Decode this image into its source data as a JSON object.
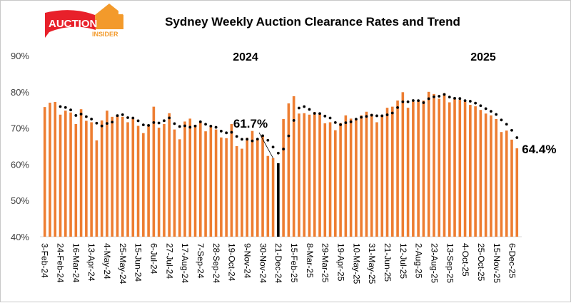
{
  "chart_data": {
    "type": "bar",
    "title": "Sydney Weekly Auction Clearance Rates and Trend",
    "logo_text": [
      "AUCTION",
      "INSIDER"
    ],
    "ylim": [
      40,
      90
    ],
    "ytick_labels": [
      "40%",
      "50%",
      "60%",
      "70%",
      "80%",
      "90%"
    ],
    "xtick_labels": [
      "3-Feb-24",
      "24-Feb-24",
      "16-Mar-24",
      "13-Apr-24",
      "4-May-24",
      "25-May-24",
      "15-Jun-24",
      "6-Jul-24",
      "27-Jul-24",
      "17-Aug-24",
      "7-Sep-24",
      "28-Sep-24",
      "19-Oct-24",
      "9-Nov-24",
      "30-Nov-24",
      "21-Dec-24",
      "15-Feb-25",
      "8-Mar-25",
      "29-Mar-25",
      "19-Apr-25",
      "10-May-25",
      "31-May-25",
      "21-Jun-25",
      "12-Jul-25",
      "2-Aug-25",
      "23-Aug-25",
      "13-Sep-25",
      "4-Oct-25",
      "25-Oct-25",
      "15-Nov-25",
      "6-Dec-25"
    ],
    "year_labels": [
      "2024",
      "2025"
    ],
    "values": [
      75.8,
      77.0,
      77.2,
      73.7,
      74.8,
      74.3,
      71.1,
      75.2,
      72.0,
      71.6,
      66.6,
      72.1,
      74.8,
      73.1,
      73.7,
      73.1,
      71.6,
      72.7,
      70.6,
      68.6,
      71.0,
      75.9,
      70.1,
      71.1,
      74.1,
      69.6,
      66.9,
      71.8,
      72.6,
      70.9,
      71.6,
      69.1,
      70.5,
      69.6,
      67.4,
      67.2,
      71.1,
      65.0,
      64.3,
      67.3,
      69.2,
      67.0,
      68.0,
      62.3,
      61.7,
      60.3,
      72.5,
      76.8,
      78.8,
      74.0,
      74.1,
      73.7,
      74.4,
      73.8,
      71.3,
      71.6,
      69.4,
      71.4,
      73.5,
      72.6,
      72.3,
      73.5,
      74.5,
      73.9,
      71.6,
      73.5,
      75.6,
      75.9,
      77.6,
      79.9,
      75.6,
      77.3,
      77.5,
      77.6,
      80.0,
      79.4,
      78.1,
      79.6,
      77.1,
      78.1,
      77.8,
      77.3,
      76.4,
      76.0,
      75.0,
      74.0,
      73.5,
      72.5,
      68.9,
      69.3,
      66.8,
      64.4
    ],
    "highlight_index": 45,
    "trend": {
      "type": "moving-average",
      "period": 4,
      "style": "dotted",
      "color": "#000000"
    },
    "annotations": [
      {
        "text": "61.7%",
        "bar_index": 44
      },
      {
        "text": "64.4%",
        "bar_index": 91
      }
    ],
    "colors": {
      "bar": "#ED7D31",
      "highlight_bar": "#000000",
      "logo_red": "#E8202A",
      "logo_orange": "#F39A2B"
    },
    "grid": false,
    "legend": "none"
  }
}
